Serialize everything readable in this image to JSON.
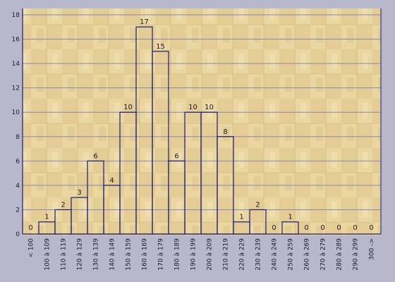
{
  "chart_data": {
    "type": "bar",
    "title": "",
    "xlabel": "",
    "ylabel": "",
    "ylim": [
      0,
      18
    ],
    "yticks": [
      0,
      2,
      4,
      6,
      8,
      10,
      12,
      14,
      16,
      18
    ],
    "grid": true,
    "categories": [
      "< 100",
      "100 à 109",
      "110 à 119",
      "120 à 129",
      "130 à 139",
      "140 à 149",
      "150 à 159",
      "160 à 169",
      "170 à 179",
      "180 à 189",
      "190 à 199",
      "200 à 209",
      "210 à 219",
      "220 à 229",
      "230 à 239",
      "240 à 249",
      "250 à 259",
      "260 à 269",
      "270 à 279",
      "280 à 289",
      "290 à 299",
      "300 ->"
    ],
    "values": [
      0,
      1,
      2,
      3,
      6,
      4,
      10,
      17,
      15,
      6,
      10,
      10,
      8,
      1,
      2,
      0,
      1,
      0,
      0,
      0,
      0,
      0
    ],
    "colors": {
      "background": "#b8b8cc",
      "plot_wood": "#ead6a0",
      "bar_stroke": "#1c1c7a",
      "gridline": "#8888b0",
      "axis": "#1c1c7a",
      "text": "#1a1a2a"
    }
  }
}
